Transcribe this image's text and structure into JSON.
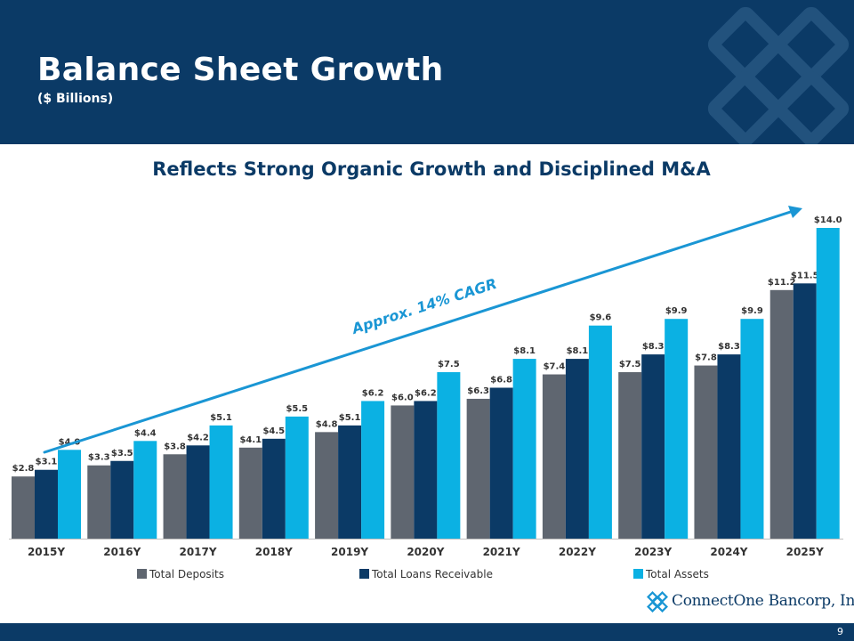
{
  "header": {
    "title": "Balance Sheet Growth",
    "subtitle": "($ Billions)"
  },
  "colors": {
    "navy": "#0b3a66",
    "deposits": "#5f6670",
    "loans": "#0b3a66",
    "assets": "#0bb1e3",
    "arrow": "#1a96d4"
  },
  "chart_data": {
    "type": "bar",
    "title": "Reflects Strong Organic Growth and Disciplined M&A",
    "categories": [
      "2015Y",
      "2016Y",
      "2017Y",
      "2018Y",
      "2019Y",
      "2020Y",
      "2021Y",
      "2022Y",
      "2023Y",
      "2024Y",
      "2025Y"
    ],
    "series": [
      {
        "name": "Total Deposits",
        "values": [
          2.8,
          3.3,
          3.8,
          4.1,
          4.8,
          6.0,
          6.3,
          7.4,
          7.5,
          7.8,
          11.2
        ],
        "labels": [
          "$2.8",
          "$3.3",
          "$3.8",
          "$4.1",
          "$4.8",
          "$6.0",
          "$6.3",
          "$7.4",
          "$7.5",
          "$7.8",
          "$11.2"
        ]
      },
      {
        "name": "Total Loans Receivable",
        "values": [
          3.1,
          3.5,
          4.2,
          4.5,
          5.1,
          6.2,
          6.8,
          8.1,
          8.3,
          8.3,
          11.5
        ],
        "labels": [
          "$3.1",
          "$3.5",
          "$4.2",
          "$4.5",
          "$5.1",
          "$6.2",
          "$6.8",
          "$8.1",
          "$8.3",
          "$8.3",
          "$11.5"
        ]
      },
      {
        "name": "Total Assets",
        "values": [
          4.0,
          4.4,
          5.1,
          5.5,
          6.2,
          7.5,
          8.1,
          9.6,
          9.9,
          9.9,
          14.0
        ],
        "labels": [
          "$4.0",
          "$4.4",
          "$5.1",
          "$5.5",
          "$6.2",
          "$7.5",
          "$8.1",
          "$9.6",
          "$9.9",
          "$9.9",
          "$14.0"
        ]
      }
    ],
    "ylim": [
      0,
      14
    ],
    "grid": false,
    "annotation": "Approx. 14% CAGR",
    "legend_position": "bottom"
  },
  "logo": {
    "name": "ConnectOne Bancorp, Inc."
  },
  "footer": {
    "page_number": "9"
  }
}
